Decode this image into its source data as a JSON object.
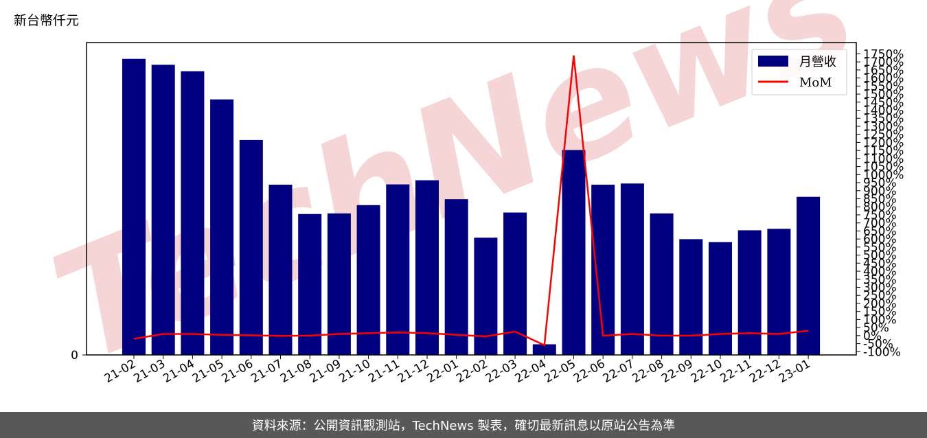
{
  "unit_label": "新台幣仟元",
  "footer_text": "資料來源：公開資訊觀測站，TechNews 製表，確切最新訊息以原站公告為準",
  "watermark_text": "TechNews",
  "colors": {
    "bar": "#000080",
    "line": "#ff0000",
    "footer_bg": "#585858",
    "watermark": "#f2c8c8"
  },
  "chart_data": {
    "type": "bar+line",
    "categories": [
      "21-02",
      "21-03",
      "21-04",
      "21-05",
      "21-06",
      "21-07",
      "21-08",
      "21-09",
      "21-10",
      "21-11",
      "21-12",
      "22-01",
      "22-02",
      "22-03",
      "22-04",
      "22-05",
      "22-06",
      "22-07",
      "22-08",
      "22-09",
      "22-10",
      "22-11",
      "22-12",
      "23-01"
    ],
    "series": [
      {
        "name": "月營收",
        "type": "bar",
        "axis": "left",
        "values": [
          100,
          98,
          95.8,
          86.3,
          72.6,
          57.5,
          47.6,
          47.8,
          50.6,
          57.6,
          59.0,
          52.6,
          39.6,
          48.1,
          3.6,
          69.2,
          57.5,
          57.9,
          47.8,
          39.1,
          38.1,
          42.1,
          42.6,
          53.4
        ]
      },
      {
        "name": "MoM",
        "type": "line",
        "axis": "right",
        "values": [
          -20,
          10,
          10,
          5,
          2,
          -2,
          0,
          10,
          15,
          20,
          15,
          5,
          -5,
          25,
          -60,
          1740,
          0,
          10,
          0,
          0,
          10,
          15,
          10,
          30
        ]
      }
    ],
    "y_left": {
      "ticks": [
        0
      ],
      "tick_labels": [
        "0"
      ],
      "ylim": [
        0,
        105.5
      ]
    },
    "y_right": {
      "ylim": [
        -120,
        1820
      ],
      "ticks": [
        -100,
        -50,
        0,
        50,
        100,
        150,
        200,
        250,
        300,
        350,
        400,
        450,
        500,
        550,
        600,
        650,
        700,
        750,
        800,
        850,
        900,
        950,
        1000,
        1050,
        1100,
        1150,
        1200,
        1250,
        1300,
        1350,
        1400,
        1450,
        1500,
        1550,
        1600,
        1650,
        1700,
        1750
      ],
      "tick_labels": [
        "-100%",
        "-50%",
        "0%",
        "50%",
        "100%",
        "150%",
        "200%",
        "250%",
        "300%",
        "350%",
        "400%",
        "450%",
        "500%",
        "550%",
        "600%",
        "650%",
        "700%",
        "750%",
        "800%",
        "850%",
        "900%",
        "950%",
        "1000%",
        "1050%",
        "1100%",
        "1150%",
        "1200%",
        "1250%",
        "1300%",
        "1350%",
        "1400%",
        "1450%",
        "1500%",
        "1550%",
        "1600%",
        "1650%",
        "1700%",
        "1750%"
      ]
    },
    "legend": {
      "position": "top-right"
    }
  }
}
